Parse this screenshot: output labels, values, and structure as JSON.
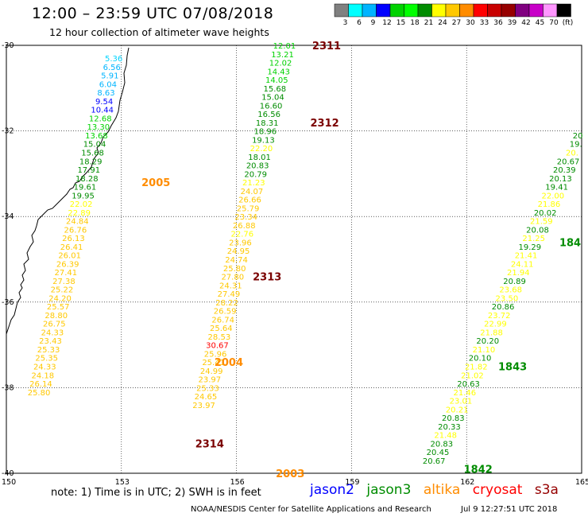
{
  "header": {
    "title": "12:00 – 23:59 UTC 07/08/2018",
    "subtitle": "12 hour collection of altimeter wave heights"
  },
  "colorbar": {
    "unit": "(ft)",
    "bins": [
      {
        "color": "#808080",
        "label": "3"
      },
      {
        "color": "#00ffff",
        "label": "6"
      },
      {
        "color": "#00b4ff",
        "label": "9"
      },
      {
        "color": "#0000ff",
        "label": "12"
      },
      {
        "color": "#00d200",
        "label": "15"
      },
      {
        "color": "#00ff00",
        "label": "18"
      },
      {
        "color": "#008c00",
        "label": "21"
      },
      {
        "color": "#ffff00",
        "label": "24"
      },
      {
        "color": "#ffc800",
        "label": "27"
      },
      {
        "color": "#ff8c00",
        "label": "30"
      },
      {
        "color": "#ff0000",
        "label": "33"
      },
      {
        "color": "#c80000",
        "label": "36"
      },
      {
        "color": "#960000",
        "label": "39"
      },
      {
        "color": "#800080",
        "label": "42"
      },
      {
        "color": "#c800c8",
        "label": "45"
      },
      {
        "color": "#ff96ff",
        "label": "70"
      },
      {
        "color": "#000000",
        "label": ""
      }
    ]
  },
  "axes": {
    "lat_ticks": [
      "-30",
      "-32",
      "-34",
      "-36",
      "-38",
      "-40"
    ],
    "lon_ticks": [
      "150",
      "153",
      "156",
      "159",
      "162",
      "165"
    ]
  },
  "tracks": [
    {
      "name": "2311",
      "color": "#7a0000",
      "points": [
        {
          "lon": 157.25,
          "lat": -30.0,
          "v": "12.01",
          "c": "#00d200"
        },
        {
          "lon": 157.2,
          "lat": -30.2,
          "v": "13.21",
          "c": "#00d200"
        },
        {
          "lon": 157.15,
          "lat": -30.4,
          "v": "12.02",
          "c": "#00d200"
        },
        {
          "lon": 157.1,
          "lat": -30.6,
          "v": "14.43",
          "c": "#00d200"
        },
        {
          "lon": 157.05,
          "lat": -30.8,
          "v": "14.05",
          "c": "#00d200"
        },
        {
          "lon": 157.0,
          "lat": -31.0,
          "v": "15.68",
          "c": "#008c00"
        },
        {
          "lon": 156.95,
          "lat": -31.2,
          "v": "15.04",
          "c": "#008c00"
        },
        {
          "lon": 156.9,
          "lat": -31.4,
          "v": "16.60",
          "c": "#008c00"
        },
        {
          "lon": 156.85,
          "lat": -31.6,
          "v": "16.56",
          "c": "#008c00"
        },
        {
          "lon": 156.8,
          "lat": -31.8,
          "v": "18.31",
          "c": "#008c00"
        },
        {
          "lon": 156.75,
          "lat": -32.0,
          "v": "18.96",
          "c": "#008c00"
        },
        {
          "lon": 156.7,
          "lat": -32.2,
          "v": "19.13",
          "c": "#008c00"
        },
        {
          "lon": 156.65,
          "lat": -32.4,
          "v": "22.20",
          "c": "#ffff00"
        },
        {
          "lon": 156.6,
          "lat": -32.6,
          "v": "18.01",
          "c": "#008c00"
        },
        {
          "lon": 156.55,
          "lat": -32.8,
          "v": "20.83",
          "c": "#008c00"
        },
        {
          "lon": 156.5,
          "lat": -33.0,
          "v": "20.79",
          "c": "#008c00"
        },
        {
          "lon": 156.45,
          "lat": -33.2,
          "v": "21.23",
          "c": "#ffff00"
        },
        {
          "lon": 156.4,
          "lat": -33.4,
          "v": "24.07",
          "c": "#ffc800"
        },
        {
          "lon": 156.35,
          "lat": -33.6,
          "v": "26.66",
          "c": "#ffc800"
        },
        {
          "lon": 156.3,
          "lat": -33.8,
          "v": "25.79",
          "c": "#ffc800"
        },
        {
          "lon": 156.25,
          "lat": -34.0,
          "v": "23.34",
          "c": "#ffc800"
        },
        {
          "lon": 156.2,
          "lat": -34.2,
          "v": "26.88",
          "c": "#ffc800"
        },
        {
          "lon": 156.15,
          "lat": -34.4,
          "v": "22.76",
          "c": "#ffff00"
        },
        {
          "lon": 156.1,
          "lat": -34.6,
          "v": "23.96",
          "c": "#ffc800"
        },
        {
          "lon": 156.05,
          "lat": -34.8,
          "v": "24.95",
          "c": "#ffc800"
        },
        {
          "lon": 156.0,
          "lat": -35.0,
          "v": "24.74",
          "c": "#ffc800"
        },
        {
          "lon": 155.95,
          "lat": -35.2,
          "v": "25.80",
          "c": "#ffc800"
        },
        {
          "lon": 155.9,
          "lat": -35.4,
          "v": "27.80",
          "c": "#ffc800"
        },
        {
          "lon": 155.85,
          "lat": -35.6,
          "v": "24.31",
          "c": "#ffc800"
        },
        {
          "lon": 155.8,
          "lat": -35.8,
          "v": "27.49",
          "c": "#ffc800"
        },
        {
          "lon": 155.75,
          "lat": -36.0,
          "v": "28.22",
          "c": "#ffc800"
        },
        {
          "lon": 155.7,
          "lat": -36.2,
          "v": "26.59",
          "c": "#ffc800"
        },
        {
          "lon": 155.65,
          "lat": -36.4,
          "v": "26.74",
          "c": "#ffc800"
        },
        {
          "lon": 155.6,
          "lat": -36.6,
          "v": "25.64",
          "c": "#ffc800"
        },
        {
          "lon": 155.55,
          "lat": -36.8,
          "v": "28.53",
          "c": "#ffc800"
        },
        {
          "lon": 155.5,
          "lat": -37.0,
          "v": "30.67",
          "c": "#ff0000"
        },
        {
          "lon": 155.45,
          "lat": -37.2,
          "v": "25.96",
          "c": "#ffc800"
        },
        {
          "lon": 155.4,
          "lat": -37.4,
          "v": "25.41",
          "c": "#ffc800"
        },
        {
          "lon": 155.35,
          "lat": -37.6,
          "v": "24.99",
          "c": "#ffc800"
        },
        {
          "lon": 155.3,
          "lat": -37.8,
          "v": "23.97",
          "c": "#ffc800"
        },
        {
          "lon": 155.25,
          "lat": -38.0,
          "v": "25.33",
          "c": "#ffc800"
        },
        {
          "lon": 155.2,
          "lat": -38.2,
          "v": "24.65",
          "c": "#ffc800"
        },
        {
          "lon": 155.15,
          "lat": -38.4,
          "v": "23.97",
          "c": "#ffc800"
        }
      ]
    },
    {
      "name": "2313",
      "color": "#7a0000",
      "points": []
    },
    {
      "name": "2312",
      "color": "#7a0000",
      "points": []
    },
    {
      "name": "2005",
      "color": "#ff8c00",
      "points": [
        {
          "lon": 152.8,
          "lat": -30.3,
          "v": "5.36",
          "c": "#00d4ff"
        },
        {
          "lon": 152.75,
          "lat": -30.5,
          "v": "6.56",
          "c": "#00b4ff"
        },
        {
          "lon": 152.7,
          "lat": -30.7,
          "v": "5.91",
          "c": "#00b4ff"
        },
        {
          "lon": 152.65,
          "lat": -30.9,
          "v": "6.04",
          "c": "#00b4ff"
        },
        {
          "lon": 152.6,
          "lat": -31.1,
          "v": "8.63",
          "c": "#00b4ff"
        },
        {
          "lon": 152.55,
          "lat": -31.3,
          "v": "9.54",
          "c": "#0000ff"
        },
        {
          "lon": 152.5,
          "lat": -31.5,
          "v": "10.44",
          "c": "#0000ff"
        },
        {
          "lon": 152.45,
          "lat": -31.7,
          "v": "12.68",
          "c": "#00d200"
        },
        {
          "lon": 152.4,
          "lat": -31.9,
          "v": "13.30",
          "c": "#00d200"
        },
        {
          "lon": 152.35,
          "lat": -32.1,
          "v": "13.68",
          "c": "#00d200"
        },
        {
          "lon": 152.3,
          "lat": -32.3,
          "v": "15.04",
          "c": "#008c00"
        },
        {
          "lon": 152.25,
          "lat": -32.5,
          "v": "15.68",
          "c": "#008c00"
        },
        {
          "lon": 152.2,
          "lat": -32.7,
          "v": "18.29",
          "c": "#008c00"
        },
        {
          "lon": 152.15,
          "lat": -32.9,
          "v": "17.91",
          "c": "#008c00"
        },
        {
          "lon": 152.1,
          "lat": -33.1,
          "v": "18.28",
          "c": "#008c00"
        },
        {
          "lon": 152.05,
          "lat": -33.3,
          "v": "19.61",
          "c": "#008c00"
        },
        {
          "lon": 152.0,
          "lat": -33.5,
          "v": "19.95",
          "c": "#008c00"
        },
        {
          "lon": 151.95,
          "lat": -33.7,
          "v": "22.02",
          "c": "#ffff00"
        },
        {
          "lon": 151.9,
          "lat": -33.9,
          "v": "22.89",
          "c": "#ffff00"
        },
        {
          "lon": 151.85,
          "lat": -34.1,
          "v": "24.84",
          "c": "#ffc800"
        },
        {
          "lon": 151.8,
          "lat": -34.3,
          "v": "26.76",
          "c": "#ffc800"
        },
        {
          "lon": 151.75,
          "lat": -34.5,
          "v": "26.13",
          "c": "#ffc800"
        },
        {
          "lon": 151.7,
          "lat": -34.7,
          "v": "26.41",
          "c": "#ffc800"
        },
        {
          "lon": 151.65,
          "lat": -34.9,
          "v": "26.01",
          "c": "#ffc800"
        },
        {
          "lon": 151.6,
          "lat": -35.1,
          "v": "26.39",
          "c": "#ffc800"
        },
        {
          "lon": 151.55,
          "lat": -35.3,
          "v": "27.41",
          "c": "#ffc800"
        },
        {
          "lon": 151.5,
          "lat": -35.5,
          "v": "27.38",
          "c": "#ffc800"
        },
        {
          "lon": 151.45,
          "lat": -35.7,
          "v": "25.22",
          "c": "#ffc800"
        },
        {
          "lon": 151.4,
          "lat": -35.9,
          "v": "24.20",
          "c": "#ffc800"
        },
        {
          "lon": 151.35,
          "lat": -36.1,
          "v": "25.57",
          "c": "#ffc800"
        },
        {
          "lon": 151.3,
          "lat": -36.3,
          "v": "28.80",
          "c": "#ffc800"
        },
        {
          "lon": 151.25,
          "lat": -36.5,
          "v": "26.75",
          "c": "#ffc800"
        },
        {
          "lon": 151.2,
          "lat": -36.7,
          "v": "24.33",
          "c": "#ffc800"
        },
        {
          "lon": 151.15,
          "lat": -36.9,
          "v": "23.43",
          "c": "#ffc800"
        },
        {
          "lon": 151.1,
          "lat": -37.1,
          "v": "25.33",
          "c": "#ffc800"
        },
        {
          "lon": 151.05,
          "lat": -37.3,
          "v": "25.35",
          "c": "#ffc800"
        },
        {
          "lon": 151.0,
          "lat": -37.5,
          "v": "24.33",
          "c": "#ffc800"
        },
        {
          "lon": 150.95,
          "lat": -37.7,
          "v": "24.18",
          "c": "#ffc800"
        },
        {
          "lon": 150.9,
          "lat": -37.9,
          "v": "26.14",
          "c": "#ffc800"
        },
        {
          "lon": 150.85,
          "lat": -38.1,
          "v": "25.80",
          "c": "#ffc800"
        }
      ]
    },
    {
      "name": "1842",
      "color": "#008c00",
      "points": [
        {
          "lon": 164.9,
          "lat": -32.1,
          "v": "20",
          "c": "#008c00"
        },
        {
          "lon": 164.85,
          "lat": -32.3,
          "v": "19.",
          "c": "#008c00"
        },
        {
          "lon": 164.75,
          "lat": -32.5,
          "v": "20.",
          "c": "#ffff00"
        },
        {
          "lon": 164.65,
          "lat": -32.7,
          "v": "20.67",
          "c": "#008c00"
        },
        {
          "lon": 164.55,
          "lat": -32.9,
          "v": "20.39",
          "c": "#008c00"
        },
        {
          "lon": 164.45,
          "lat": -33.1,
          "v": "20.13",
          "c": "#008c00"
        },
        {
          "lon": 164.35,
          "lat": -33.3,
          "v": "19.41",
          "c": "#008c00"
        },
        {
          "lon": 164.25,
          "lat": -33.5,
          "v": "22.00",
          "c": "#ffff00"
        },
        {
          "lon": 164.15,
          "lat": -33.7,
          "v": "21.86",
          "c": "#ffff00"
        },
        {
          "lon": 164.05,
          "lat": -33.9,
          "v": "20.02",
          "c": "#008c00"
        },
        {
          "lon": 163.95,
          "lat": -34.1,
          "v": "21.59",
          "c": "#ffff00"
        },
        {
          "lon": 163.85,
          "lat": -34.3,
          "v": "20.08",
          "c": "#008c00"
        },
        {
          "lon": 163.75,
          "lat": -34.5,
          "v": "21.25",
          "c": "#ffff00"
        },
        {
          "lon": 163.65,
          "lat": -34.7,
          "v": "19.29",
          "c": "#008c00"
        },
        {
          "lon": 163.55,
          "lat": -34.9,
          "v": "21.41",
          "c": "#ffff00"
        },
        {
          "lon": 163.45,
          "lat": -35.1,
          "v": "24.11",
          "c": "#ffff00"
        },
        {
          "lon": 163.35,
          "lat": -35.3,
          "v": "21.94",
          "c": "#ffff00"
        },
        {
          "lon": 163.25,
          "lat": -35.5,
          "v": "20.89",
          "c": "#008c00"
        },
        {
          "lon": 163.15,
          "lat": -35.7,
          "v": "23.68",
          "c": "#ffff00"
        },
        {
          "lon": 163.05,
          "lat": -35.9,
          "v": "23.50",
          "c": "#ffff00"
        },
        {
          "lon": 162.95,
          "lat": -36.1,
          "v": "20.86",
          "c": "#008c00"
        },
        {
          "lon": 162.85,
          "lat": -36.3,
          "v": "23.72",
          "c": "#ffff00"
        },
        {
          "lon": 162.75,
          "lat": -36.5,
          "v": "22.99",
          "c": "#ffff00"
        },
        {
          "lon": 162.65,
          "lat": -36.7,
          "v": "21.88",
          "c": "#ffff00"
        },
        {
          "lon": 162.55,
          "lat": -36.9,
          "v": "20.20",
          "c": "#008c00"
        },
        {
          "lon": 162.45,
          "lat": -37.1,
          "v": "21.10",
          "c": "#ffff00"
        },
        {
          "lon": 162.35,
          "lat": -37.3,
          "v": "20.10",
          "c": "#008c00"
        },
        {
          "lon": 162.25,
          "lat": -37.5,
          "v": "21.82",
          "c": "#ffff00"
        },
        {
          "lon": 162.15,
          "lat": -37.7,
          "v": "21.02",
          "c": "#ffff00"
        },
        {
          "lon": 162.05,
          "lat": -37.9,
          "v": "20.63",
          "c": "#008c00"
        },
        {
          "lon": 161.95,
          "lat": -38.1,
          "v": "21.46",
          "c": "#ffff00"
        },
        {
          "lon": 161.85,
          "lat": -38.3,
          "v": "23.01",
          "c": "#ffff00"
        },
        {
          "lon": 161.75,
          "lat": -38.5,
          "v": "20.21",
          "c": "#ffff00"
        },
        {
          "lon": 161.65,
          "lat": -38.7,
          "v": "20.83",
          "c": "#008c00"
        },
        {
          "lon": 161.55,
          "lat": -38.9,
          "v": "20.33",
          "c": "#008c00"
        },
        {
          "lon": 161.45,
          "lat": -39.1,
          "v": "21.48",
          "c": "#ffff00"
        },
        {
          "lon": 161.35,
          "lat": -39.3,
          "v": "20.83",
          "c": "#008c00"
        },
        {
          "lon": 161.25,
          "lat": -39.5,
          "v": "20.45",
          "c": "#008c00"
        },
        {
          "lon": 161.15,
          "lat": -39.7,
          "v": "20.67",
          "c": "#008c00"
        }
      ]
    }
  ],
  "track_labels": [
    {
      "text": "2311",
      "color": "#7a0000",
      "lon": 158.35,
      "lat": -30.0
    },
    {
      "text": "2312",
      "color": "#7a0000",
      "lon": 158.3,
      "lat": -31.8
    },
    {
      "text": "2005",
      "color": "#ff8c00",
      "lon": 153.9,
      "lat": -33.2
    },
    {
      "text": "2313",
      "color": "#7a0000",
      "lon": 156.8,
      "lat": -35.4
    },
    {
      "text": "2004",
      "color": "#ff8c00",
      "lon": 155.8,
      "lat": -37.4
    },
    {
      "text": "2314",
      "color": "#7a0000",
      "lon": 155.3,
      "lat": -39.3
    },
    {
      "text": "2003",
      "color": "#ff8c00",
      "lon": 157.4,
      "lat": -40.0
    },
    {
      "text": "1842",
      "color": "#008c00",
      "lon": 162.3,
      "lat": -39.9
    },
    {
      "text": "1843",
      "color": "#008c00",
      "lon": 163.2,
      "lat": -37.5
    },
    {
      "text": "184",
      "color": "#008c00",
      "lon": 164.7,
      "lat": -34.6
    }
  ],
  "note": "note: 1) Time is in UTC; 2) SWH is in feet",
  "satellites": [
    {
      "name": "jason2",
      "color": "#0000ff"
    },
    {
      "name": "jason3",
      "color": "#008c00"
    },
    {
      "name": "altika",
      "color": "#ff8c00"
    },
    {
      "name": "cryosat",
      "color": "#ff0000"
    },
    {
      "name": "s3a",
      "color": "#960000"
    }
  ],
  "credit": "NOAA/NESDIS Center for Satellite Applications and Research",
  "credit_date": "Jul  9 12:27:51 UTC 2018"
}
